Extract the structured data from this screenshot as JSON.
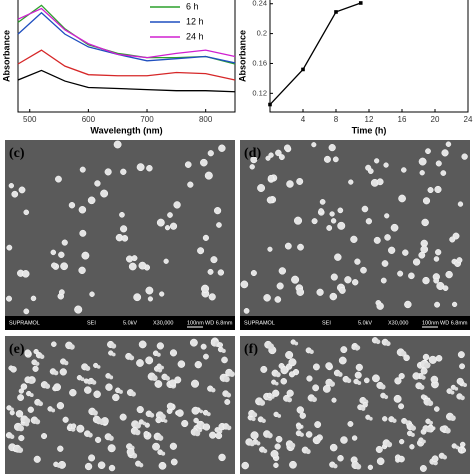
{
  "chart_data": [
    {
      "type": "line",
      "xlabel": "Wavelength (nm)",
      "ylabel": "Absorbance",
      "x": [
        480,
        520,
        560,
        600,
        650,
        700,
        750,
        800,
        850
      ],
      "xlim": [
        480,
        850
      ],
      "xticks": [
        500,
        600,
        700,
        800
      ],
      "ylim": [
        0,
        1.05
      ],
      "series": [
        {
          "color": "#000000",
          "values": [
            0.3,
            0.39,
            0.29,
            0.23,
            0.22,
            0.21,
            0.2,
            0.2,
            0.19
          ]
        },
        {
          "color": "#d62728",
          "values": [
            0.45,
            0.58,
            0.43,
            0.35,
            0.34,
            0.34,
            0.37,
            0.36,
            0.3
          ]
        },
        {
          "name": "6 h",
          "color": "#2ca02c",
          "values": [
            0.84,
            1.0,
            0.78,
            0.63,
            0.55,
            0.51,
            0.51,
            0.52,
            0.45
          ]
        },
        {
          "name": "12 h",
          "color": "#1f4fbf",
          "values": [
            0.73,
            0.93,
            0.73,
            0.61,
            0.54,
            0.48,
            0.5,
            0.52,
            0.46
          ]
        },
        {
          "name": "24 h",
          "color": "#d020d0",
          "values": [
            0.87,
            0.97,
            0.77,
            0.64,
            0.54,
            0.51,
            0.55,
            0.58,
            0.52
          ]
        }
      ]
    },
    {
      "type": "line",
      "xlabel": "Time (h)",
      "ylabel": "Absorbance",
      "x": [
        0,
        4,
        8,
        11
      ],
      "xlim": [
        0,
        24
      ],
      "xticks": [
        4,
        8,
        12,
        16,
        20,
        24
      ],
      "ylim": [
        0.095,
        0.245
      ],
      "yticks": [
        0.12,
        0.16,
        0.2,
        0.24
      ],
      "series": [
        {
          "color": "#000000",
          "values": [
            0.105,
            0.152,
            0.229,
            0.241
          ]
        }
      ]
    }
  ],
  "panels": [
    {
      "label": "(c)",
      "info": [
        "SUPRAMOL",
        "SEI",
        "5.0kV",
        "X30,000",
        "100nm",
        "WD 6.8mm"
      ]
    },
    {
      "label": "(d)",
      "info": [
        "SUPRAMOL",
        "SEI",
        "5.0kV",
        "X30,000",
        "100nm",
        "WD 6.8mm"
      ]
    },
    {
      "label": "(e)"
    },
    {
      "label": "(f)"
    }
  ]
}
